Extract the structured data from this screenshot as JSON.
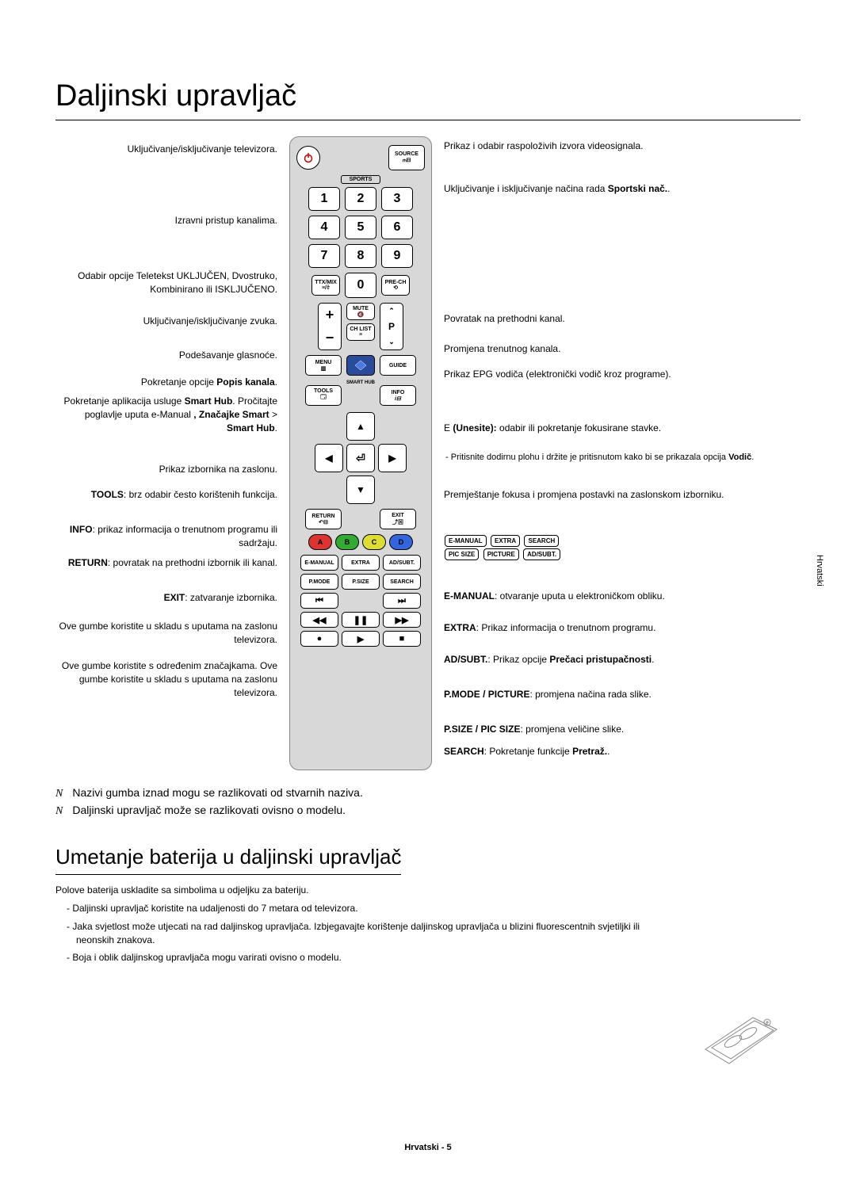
{
  "title": "Daljinski upravljač",
  "left": {
    "power": "Uključivanje/isključivanje televizora.",
    "channels": "Izravni pristup kanalima.",
    "ttx": "Odabir opcije Teletekst UKLJUČEN, Dvostruko, Kombinirano ili ISKLJUČENO.",
    "mute": "Uključivanje/isključivanje zvuka.",
    "volume": "Podešavanje glasnoće.",
    "chlist_html": "Pokretanje opcije <b>Popis kanala</b>.",
    "smarthub_html": "Pokretanje aplikacija usluge <b>Smart Hub</b>. Pročitajte poglavlje uputa e-Manual <b>, Značajke Smart</b> > <b>Smart Hub</b>.",
    "menu": "Prikaz izbornika na zaslonu.",
    "tools_html": "<b>TOOLS</b>: brz odabir često korištenih funkcija.",
    "info_html": "<b>INFO</b>: prikaz informacija o trenutnom programu ili sadržaju.",
    "return_html": "<b>RETURN</b>: povratak na prethodni izbornik ili kanal.",
    "exit_html": "<b>EXIT</b>: zatvaranje izbornika.",
    "abcd": "Ove gumbe koristite u skladu s uputama na zaslonu televizora.",
    "media": "Ove gumbe koristite s određenim značajkama. Ove gumbe koristite u skladu s uputama na zaslonu televizora."
  },
  "right": {
    "source": "Prikaz i odabir raspoloživih izvora videosignala.",
    "sports_html": "Uključivanje i isključivanje načina rada <b>Sportski nač.</b>.",
    "prech": "Povratak na prethodni kanal.",
    "ch": "Promjena trenutnog kanala.",
    "guide": "Prikaz EPG vodiča (elektronički vodič kroz programe).",
    "enter_html": "E <b>(Unesite):</b> odabir ili pokretanje fokusirane stavke.",
    "enter_sub_html": "Pritisnite dodirnu plohu i držite je pritisnutom kako bi se prikazala opcija <b>Vodič</b>.",
    "arrows": "Premještanje fokusa i promjena postavki na zaslonskom izborniku.",
    "emanual_html": "<b>E-MANUAL</b>: otvaranje uputa u elektroničkom obliku.",
    "extra_html": "<b>EXTRA</b>: Prikaz informacija o trenutnom programu.",
    "adsubt_html": "<b>AD/SUBT.</b>: Prikaz opcije <b>Prečaci pristupačnosti</b>.",
    "pmode_html": "<b>P.MODE / PICTURE</b>: promjena načina rada slike.",
    "psize_html": "<b>P.SIZE / PIC SIZE</b>: promjena veličine slike.",
    "search_html": "<b>SEARCH</b>: Pokretanje funkcije <b>Pretraž.</b>."
  },
  "remote": {
    "source": "SOURCE",
    "sports": "SPORTS",
    "numbers": [
      "1",
      "2",
      "3",
      "4",
      "5",
      "6",
      "7",
      "8",
      "9",
      "0"
    ],
    "ttxmix": "TTX/MIX",
    "prech_btn": "PRE-CH",
    "mute_btn": "MUTE",
    "chlist_btn": "CH LIST",
    "menu_btn": "MENU",
    "guide_btn": "GUIDE",
    "smarthub_btn": "SMART HUB",
    "tools_btn": "TOOLS",
    "info_btn": "INFO",
    "return_btn": "RETURN",
    "exit_btn": "EXIT",
    "abcd": [
      "A",
      "B",
      "C",
      "D"
    ],
    "row1": [
      "E-MANUAL",
      "EXTRA",
      "AD/SUBT."
    ],
    "row2": [
      "P.MODE",
      "P.SIZE",
      "SEARCH"
    ],
    "alt_row1": [
      "E-MANUAL",
      "EXTRA",
      "SEARCH"
    ],
    "alt_row2": [
      "PIC SIZE",
      "PICTURE",
      "AD/SUBT."
    ]
  },
  "notes": {
    "n1": "Nazivi gumba iznad mogu se razlikovati od stvarnih naziva.",
    "n2": "Daljinski upravljač može se razlikovati ovisno o modelu."
  },
  "battery": {
    "heading": "Umetanje baterija u daljinski upravljač",
    "intro": "Polove baterija uskladite sa simbolima u odjeljku za bateriju.",
    "b1": "Daljinski upravljač koristite na udaljenosti do 7 metara od televizora.",
    "b2": "Jaka svjetlost može utjecati na rad daljinskog upravljača. Izbjegavajte korištenje daljinskog upravljača u blizini fluorescentnih svjetiljki ili neonskih znakova.",
    "b3": "Boja i oblik daljinskog upravljača mogu varirati ovisno o modelu."
  },
  "side_tab": "Hrvatski",
  "footer": "Hrvatski - 5"
}
